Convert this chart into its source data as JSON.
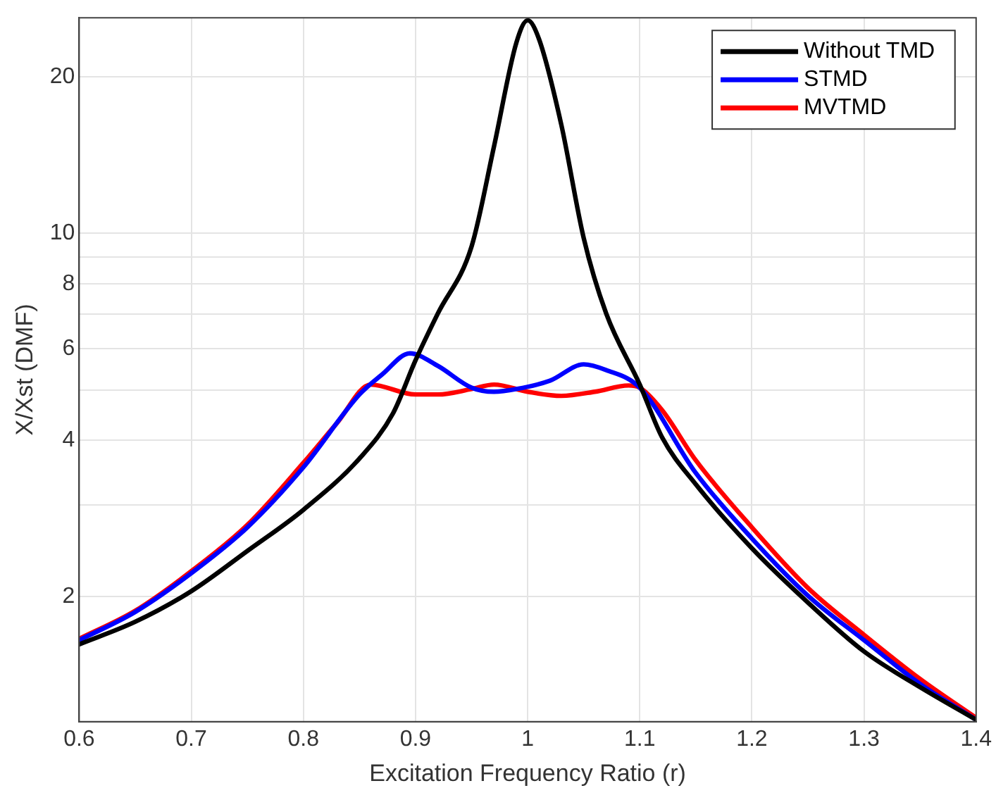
{
  "chart_data": {
    "type": "line",
    "xlabel": "Excitation Frequency Ratio (r)",
    "ylabel": "X/Xst (DMF)",
    "log": "y",
    "grid": true,
    "legend": "top right",
    "marker": "none",
    "line_style": "solid",
    "xlim": [
      0.6,
      1.4
    ],
    "xticks": [
      0.6,
      0.7,
      0.8,
      0.9,
      1,
      1.1,
      1.2,
      1.3,
      1.4
    ],
    "ylim": [
      1.15,
      26
    ],
    "yticks": [
      2,
      {
        "value": 3,
        "label": null
      },
      4,
      {
        "value": 5,
        "label": null
      },
      6,
      {
        "value": 7,
        "label": null
      },
      8,
      {
        "value": 9,
        "label": null
      },
      10,
      20
    ],
    "series": [
      {
        "name": "Without TMD",
        "color": "#000000",
        "x": [
          0.6,
          0.65,
          0.7,
          0.75,
          0.8,
          0.85,
          0.88,
          0.9,
          0.92,
          0.95,
          0.97,
          0.99,
          1.0,
          1.01,
          1.03,
          1.05,
          1.07,
          1.1,
          1.12,
          1.15,
          1.2,
          1.25,
          1.3,
          1.35,
          1.4
        ],
        "values": [
          1.62,
          1.79,
          2.05,
          2.45,
          2.94,
          3.69,
          4.51,
          5.7,
          7.02,
          9.44,
          14.7,
          23.3,
          25.7,
          23.7,
          16.2,
          9.8,
          7.02,
          5.12,
          4.05,
          3.29,
          2.48,
          1.95,
          1.57,
          1.34,
          1.16
        ]
      },
      {
        "name": "STMD",
        "color": "#0000ff",
        "x": [
          0.6,
          0.65,
          0.7,
          0.75,
          0.8,
          0.85,
          0.87,
          0.895,
          0.92,
          0.95,
          0.97,
          0.99,
          1.02,
          1.05,
          1.07,
          1.1,
          1.15,
          1.2,
          1.25,
          1.3,
          1.35,
          1.4
        ],
        "values": [
          1.65,
          1.87,
          2.22,
          2.72,
          3.55,
          4.9,
          5.35,
          5.88,
          5.56,
          5.05,
          4.96,
          5.02,
          5.21,
          5.6,
          5.46,
          5.05,
          3.46,
          2.59,
          2.01,
          1.65,
          1.36,
          1.16
        ]
      },
      {
        "name": "MVTMD",
        "color": "#ff0000",
        "x": [
          0.6,
          0.65,
          0.7,
          0.75,
          0.8,
          0.83,
          0.86,
          0.9,
          0.92,
          0.95,
          0.97,
          1.0,
          1.03,
          1.06,
          1.09,
          1.1,
          1.12,
          1.15,
          1.2,
          1.25,
          1.3,
          1.35,
          1.4
        ],
        "values": [
          1.66,
          1.88,
          2.24,
          2.75,
          3.62,
          4.32,
          5.12,
          4.9,
          4.9,
          5.02,
          5.12,
          4.96,
          4.87,
          4.96,
          5.1,
          5.05,
          4.57,
          3.66,
          2.72,
          2.08,
          1.69,
          1.39,
          1.17
        ]
      }
    ]
  }
}
